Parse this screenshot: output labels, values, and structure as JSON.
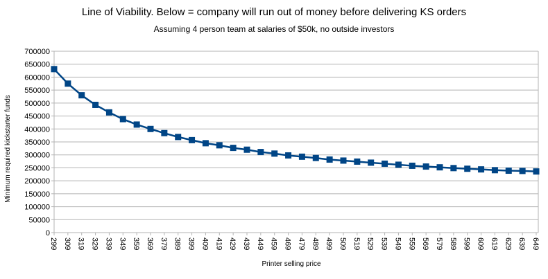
{
  "chart_data": {
    "type": "line",
    "title": "Line of Viability. Below = company will run out of money before delivering KS orders",
    "subtitle": "Assuming 4 person team at salaries of $50k, no outside investors",
    "xlabel": "Printer selling price",
    "ylabel": "Minimum required kickstarter funds",
    "ylim": [
      0,
      700000
    ],
    "ytick_step": 50000,
    "grid": true,
    "series_color": "#004586",
    "x": [
      299,
      309,
      319,
      329,
      339,
      349,
      359,
      369,
      379,
      389,
      399,
      409,
      419,
      429,
      439,
      449,
      459,
      469,
      479,
      489,
      499,
      509,
      519,
      529,
      539,
      549,
      559,
      569,
      579,
      589,
      599,
      609,
      619,
      629,
      639,
      649
    ],
    "series": [
      {
        "name": "Minimum required kickstarter funds",
        "values": [
          631000,
          575000,
          530000,
          493000,
          464000,
          438000,
          417000,
          400000,
          384000,
          369000,
          357000,
          345000,
          337000,
          327000,
          320000,
          311000,
          305000,
          298000,
          293000,
          288000,
          282000,
          278000,
          274000,
          270000,
          266000,
          262000,
          258000,
          255000,
          252000,
          249000,
          246500,
          244000,
          241000,
          239000,
          238000,
          236000
        ]
      }
    ]
  }
}
